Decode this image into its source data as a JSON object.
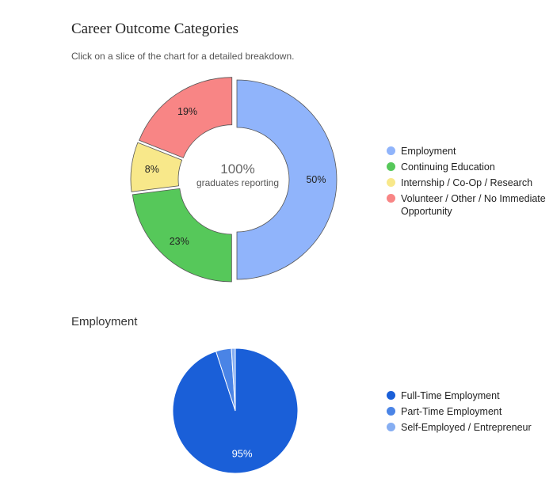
{
  "page": {
    "title": "Career Outcome Categories",
    "subtitle": "Click on a slice of the chart for a detailed breakdown."
  },
  "chart_data": [
    {
      "type": "pie",
      "variant": "donut",
      "center_value": "100%",
      "center_label": "graduates reporting",
      "categories": [
        "Employment",
        "Continuing Education",
        "Internship / Co-Op / Research",
        "Volunteer / Other / No Immediate Opportunity"
      ],
      "values": [
        50,
        23,
        8,
        19
      ],
      "value_labels": [
        "50%",
        "23%",
        "8%",
        "19%"
      ],
      "colors": [
        "#90b4fb",
        "#56c85a",
        "#f8e88a",
        "#f88585"
      ],
      "legend_position": "right"
    },
    {
      "type": "pie",
      "title": "Employment",
      "categories": [
        "Full-Time Employment",
        "Part-Time Employment",
        "Self-Employed / Entrepreneur"
      ],
      "values": [
        95,
        4,
        1
      ],
      "value_labels": [
        "95%",
        "",
        ""
      ],
      "colors": [
        "#1a5fd8",
        "#4a84e6",
        "#86aef2"
      ],
      "legend_position": "right"
    }
  ]
}
